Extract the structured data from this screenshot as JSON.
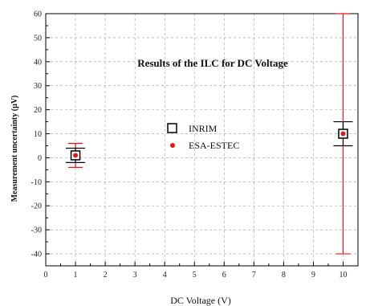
{
  "chart_data": {
    "type": "scatter",
    "title": "Results of the ILC for DC Voltage",
    "xlabel": "DC Voltage (V)",
    "ylabel": "Measurement uncertainty (µV)",
    "xlim": [
      0,
      10.5
    ],
    "ylim": [
      -45,
      60
    ],
    "x_ticks": [
      0,
      1,
      2,
      3,
      4,
      5,
      6,
      7,
      8,
      9,
      10
    ],
    "y_ticks": [
      -40,
      -30,
      -20,
      -10,
      0,
      10,
      20,
      30,
      40,
      50,
      60
    ],
    "grid": true,
    "legend_position": "center",
    "series": [
      {
        "name": "INRIM",
        "marker": "open-square",
        "color": "#000000",
        "points": [
          {
            "x": 1,
            "y": 1,
            "err": 3
          },
          {
            "x": 10,
            "y": 10,
            "err": 5
          }
        ]
      },
      {
        "name": "ESA-ESTEC",
        "marker": "filled-circle",
        "color": "#e8141a",
        "points": [
          {
            "x": 1,
            "y": 1,
            "err": 5
          },
          {
            "x": 10,
            "y": 10,
            "err": 50
          }
        ]
      }
    ]
  }
}
